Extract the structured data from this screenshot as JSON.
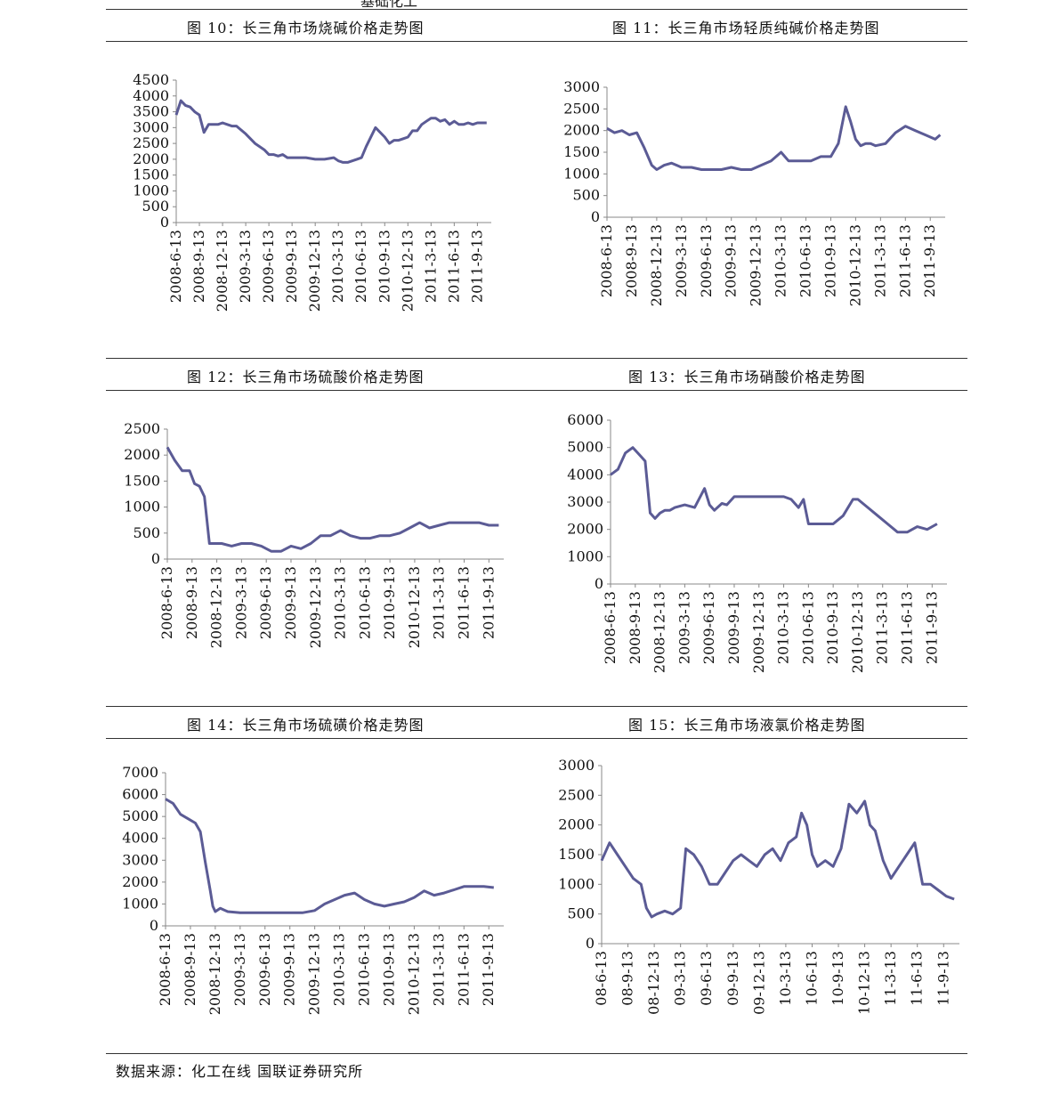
{
  "header_fragment": "基础化工",
  "source": "数据来源：化工在线  国联证券研究所",
  "charts": [
    {
      "id": "fig10",
      "title": "图 10：长三角市场烧碱价格走势图",
      "chart_data": {
        "type": "line",
        "title": "图 10：长三角市场烧碱价格走势图",
        "xlabel": "",
        "ylabel": "",
        "ylim": [
          0,
          4500
        ],
        "yticks": [
          0,
          500,
          1000,
          1500,
          2000,
          2500,
          3000,
          3500,
          4000,
          4500
        ],
        "xticks": [
          "2008-6-13",
          "2008-9-13",
          "2008-12-13",
          "2009-3-13",
          "2009-6-13",
          "2009-9-13",
          "2009-12-13",
          "2010-3-13",
          "2010-6-13",
          "2010-9-13",
          "2010-12-13",
          "2011-3-13",
          "2011-6-13",
          "2011-9-13"
        ],
        "color": "#5B5B95",
        "series": [
          {
            "name": "",
            "x": [
              0,
              0.2,
              0.4,
              0.6,
              0.8,
              1.0,
              1.2,
              1.4,
              1.6,
              1.8,
              2.0,
              2.2,
              2.4,
              2.6,
              3.0,
              3.4,
              3.8,
              4.0,
              4.2,
              4.4,
              4.6,
              4.8,
              5.0,
              5.3,
              5.6,
              6.0,
              6.4,
              6.8,
              7.0,
              7.2,
              7.4,
              7.6,
              7.8,
              8.0,
              8.2,
              8.6,
              9.0,
              9.2,
              9.4,
              9.6,
              9.8,
              10.0,
              10.2,
              10.4,
              10.6,
              10.8,
              11.0,
              11.2,
              11.4,
              11.6,
              11.8,
              12.0,
              12.2,
              12.4,
              12.6,
              12.8,
              13.0,
              13.2,
              13.4
            ],
            "values": [
              3400,
              3850,
              3700,
              3650,
              3500,
              3400,
              2850,
              3100,
              3100,
              3100,
              3150,
              3100,
              3050,
              3050,
              2800,
              2500,
              2300,
              2150,
              2150,
              2100,
              2150,
              2050,
              2050,
              2050,
              2050,
              2000,
              2000,
              2050,
              1950,
              1900,
              1900,
              1950,
              2000,
              2050,
              2400,
              3000,
              2700,
              2500,
              2600,
              2600,
              2650,
              2700,
              2900,
              2900,
              3100,
              3200,
              3300,
              3300,
              3200,
              3250,
              3100,
              3200,
              3100,
              3100,
              3150,
              3100,
              3150,
              3150,
              3150
            ]
          }
        ]
      }
    },
    {
      "id": "fig11",
      "title": "图 11：长三角市场轻质纯碱价格走势图",
      "chart_data": {
        "type": "line",
        "title": "图 11：长三角市场轻质纯碱价格走势图",
        "xlabel": "",
        "ylabel": "",
        "ylim": [
          0,
          3000
        ],
        "yticks": [
          0,
          500,
          1000,
          1500,
          2000,
          2500,
          3000
        ],
        "xticks": [
          "2008-6-13",
          "2008-9-13",
          "2008-12-13",
          "2009-3-13",
          "2009-6-13",
          "2009-9-13",
          "2009-12-13",
          "2010-3-13",
          "2010-6-13",
          "2010-9-13",
          "2010-12-13",
          "2011-3-13",
          "2011-6-13",
          "2011-9-13"
        ],
        "color": "#5B5B95",
        "series": [
          {
            "name": "",
            "x": [
              0,
              0.3,
              0.6,
              0.9,
              1.2,
              1.5,
              1.8,
              2.0,
              2.3,
              2.6,
              3.0,
              3.4,
              3.8,
              4.2,
              4.6,
              5.0,
              5.4,
              5.8,
              6.2,
              6.6,
              7.0,
              7.3,
              7.6,
              7.9,
              8.2,
              8.6,
              9.0,
              9.3,
              9.6,
              9.8,
              10.0,
              10.2,
              10.4,
              10.6,
              10.8,
              11.2,
              11.6,
              12.0,
              12.4,
              12.8,
              13.2,
              13.4
            ],
            "values": [
              2050,
              1950,
              2000,
              1900,
              1950,
              1600,
              1200,
              1100,
              1200,
              1250,
              1150,
              1150,
              1100,
              1100,
              1100,
              1150,
              1100,
              1100,
              1200,
              1300,
              1500,
              1300,
              1300,
              1300,
              1300,
              1400,
              1400,
              1700,
              2550,
              2200,
              1800,
              1650,
              1700,
              1700,
              1650,
              1700,
              1950,
              2100,
              2000,
              1900,
              1800,
              1900
            ]
          }
        ]
      }
    },
    {
      "id": "fig12",
      "title": "图 12：长三角市场硫酸价格走势图",
      "chart_data": {
        "type": "line",
        "title": "图 12：长三角市场硫酸价格走势图",
        "xlabel": "",
        "ylabel": "",
        "ylim": [
          0,
          2500
        ],
        "yticks": [
          0,
          500,
          1000,
          1500,
          2000,
          2500
        ],
        "xticks": [
          "2008-6-13",
          "2008-9-13",
          "2008-12-13",
          "2009-3-13",
          "2009-6-13",
          "2009-9-13",
          "2009-12-13",
          "2010-3-13",
          "2010-6-13",
          "2010-9-13",
          "2010-12-13",
          "2011-3-13",
          "2011-6-13",
          "2011-9-13"
        ],
        "color": "#5B5B95",
        "series": [
          {
            "name": "",
            "x": [
              0,
              0.3,
              0.6,
              0.9,
              1.1,
              1.3,
              1.5,
              1.7,
              1.9,
              2.2,
              2.6,
              3.0,
              3.4,
              3.8,
              4.2,
              4.6,
              5.0,
              5.4,
              5.8,
              6.2,
              6.6,
              7.0,
              7.4,
              7.8,
              8.2,
              8.6,
              9.0,
              9.4,
              9.8,
              10.2,
              10.6,
              11.0,
              11.4,
              11.8,
              12.2,
              12.6,
              13.0,
              13.4
            ],
            "values": [
              2150,
              1900,
              1700,
              1700,
              1450,
              1400,
              1200,
              300,
              300,
              300,
              250,
              300,
              300,
              250,
              150,
              150,
              250,
              200,
              300,
              450,
              450,
              550,
              450,
              400,
              400,
              450,
              450,
              500,
              600,
              700,
              600,
              650,
              700,
              700,
              700,
              700,
              650,
              650
            ]
          }
        ]
      }
    },
    {
      "id": "fig13",
      "title": "图 13：长三角市场硝酸价格走势图",
      "chart_data": {
        "type": "line",
        "title": "图 13：长三角市场硝酸价格走势图",
        "xlabel": "",
        "ylabel": "",
        "ylim": [
          0,
          6000
        ],
        "yticks": [
          0,
          1000,
          2000,
          3000,
          4000,
          5000,
          6000
        ],
        "xticks": [
          "2008-6-13",
          "2008-9-13",
          "2008-12-13",
          "2009-3-13",
          "2009-6-13",
          "2009-9-13",
          "2009-12-13",
          "2010-3-13",
          "2010-6-13",
          "2010-9-13",
          "2010-12-13",
          "2011-3-13",
          "2011-6-13",
          "2011-9-13"
        ],
        "color": "#5B5B95",
        "series": [
          {
            "name": "",
            "x": [
              0,
              0.3,
              0.6,
              0.9,
              1.2,
              1.4,
              1.6,
              1.8,
              2.0,
              2.2,
              2.4,
              2.6,
              3.0,
              3.4,
              3.8,
              4.0,
              4.2,
              4.5,
              4.7,
              5.0,
              5.4,
              5.8,
              6.2,
              6.6,
              7.0,
              7.3,
              7.6,
              7.8,
              8.0,
              8.2,
              8.6,
              9.0,
              9.4,
              9.8,
              10.0,
              10.4,
              10.8,
              11.2,
              11.6,
              12.0,
              12.4,
              12.8,
              13.2
            ],
            "values": [
              4000,
              4200,
              4800,
              5000,
              4700,
              4500,
              2600,
              2400,
              2600,
              2700,
              2700,
              2800,
              2900,
              2800,
              3500,
              2900,
              2700,
              2950,
              2900,
              3200,
              3200,
              3200,
              3200,
              3200,
              3200,
              3100,
              2800,
              3100,
              2200,
              2200,
              2200,
              2200,
              2500,
              3100,
              3100,
              2800,
              2500,
              2200,
              1900,
              1900,
              2100,
              2000,
              2200
            ]
          }
        ]
      }
    },
    {
      "id": "fig14",
      "title": "图 14：长三角市场硫磺价格走势图",
      "chart_data": {
        "type": "line",
        "title": "图 14：长三角市场硫磺价格走势图",
        "xlabel": "",
        "ylabel": "",
        "ylim": [
          0,
          7000
        ],
        "yticks": [
          0,
          1000,
          2000,
          3000,
          4000,
          5000,
          6000,
          7000
        ],
        "xticks": [
          "2008-6-13",
          "2008-9-13",
          "2008-12-13",
          "2009-3-13",
          "2009-6-13",
          "2009-9-13",
          "2009-12-13",
          "2010-3-13",
          "2010-6-13",
          "2010-9-13",
          "2010-12-13",
          "2011-3-13",
          "2011-6-13",
          "2011-9-13"
        ],
        "color": "#5B5B95",
        "series": [
          {
            "name": "",
            "x": [
              0,
              0.3,
              0.6,
              0.9,
              1.2,
              1.4,
              1.6,
              1.8,
              1.9,
              2.0,
              2.2,
              2.5,
              3.0,
              3.5,
              4.0,
              4.5,
              5.0,
              5.5,
              6.0,
              6.4,
              6.8,
              7.2,
              7.6,
              8.0,
              8.4,
              8.8,
              9.2,
              9.6,
              10.0,
              10.4,
              10.8,
              11.2,
              11.6,
              12.0,
              12.4,
              12.8,
              13.2
            ],
            "values": [
              5800,
              5600,
              5100,
              4900,
              4700,
              4300,
              2900,
              1600,
              900,
              650,
              800,
              650,
              600,
              600,
              600,
              600,
              600,
              600,
              700,
              1000,
              1200,
              1400,
              1500,
              1200,
              1000,
              900,
              1000,
              1100,
              1300,
              1600,
              1400,
              1500,
              1650,
              1800,
              1800,
              1800,
              1750
            ]
          }
        ]
      }
    },
    {
      "id": "fig15",
      "title": "图 15：长三角市场液氯价格走势图",
      "chart_data": {
        "type": "line",
        "title": "图 15：长三角市场液氯价格走势图",
        "xlabel": "",
        "ylabel": "",
        "ylim": [
          0,
          3000
        ],
        "yticks": [
          0,
          500,
          1000,
          1500,
          2000,
          2500,
          3000
        ],
        "xticks": [
          "08-6-13",
          "08-9-13",
          "08-12-13",
          "09-3-13",
          "09-6-13",
          "09-9-13",
          "09-12-13",
          "10-3-13",
          "10-6-13",
          "10-9-13",
          "10-12-13",
          "11-3-13",
          "11-6-13",
          "11-9-13"
        ],
        "color": "#5B5B95",
        "series": [
          {
            "name": "",
            "x": [
              0,
              0.3,
              0.6,
              0.9,
              1.2,
              1.5,
              1.7,
              1.9,
              2.1,
              2.4,
              2.7,
              3.0,
              3.2,
              3.5,
              3.8,
              4.1,
              4.4,
              4.7,
              5.0,
              5.3,
              5.6,
              5.9,
              6.2,
              6.5,
              6.8,
              7.1,
              7.4,
              7.6,
              7.8,
              8.0,
              8.2,
              8.5,
              8.8,
              9.1,
              9.4,
              9.7,
              10.0,
              10.2,
              10.4,
              10.7,
              11.0,
              11.3,
              11.6,
              11.9,
              12.2,
              12.5,
              12.8,
              13.1,
              13.4
            ],
            "values": [
              1400,
              1700,
              1500,
              1300,
              1100,
              1000,
              600,
              450,
              500,
              550,
              500,
              600,
              1600,
              1500,
              1300,
              1000,
              1000,
              1200,
              1400,
              1500,
              1400,
              1300,
              1500,
              1600,
              1400,
              1700,
              1800,
              2200,
              2000,
              1500,
              1300,
              1400,
              1300,
              1600,
              2350,
              2200,
              2400,
              2000,
              1900,
              1400,
              1100,
              1300,
              1500,
              1700,
              1000,
              1000,
              900,
              800,
              750
            ]
          }
        ]
      }
    }
  ]
}
